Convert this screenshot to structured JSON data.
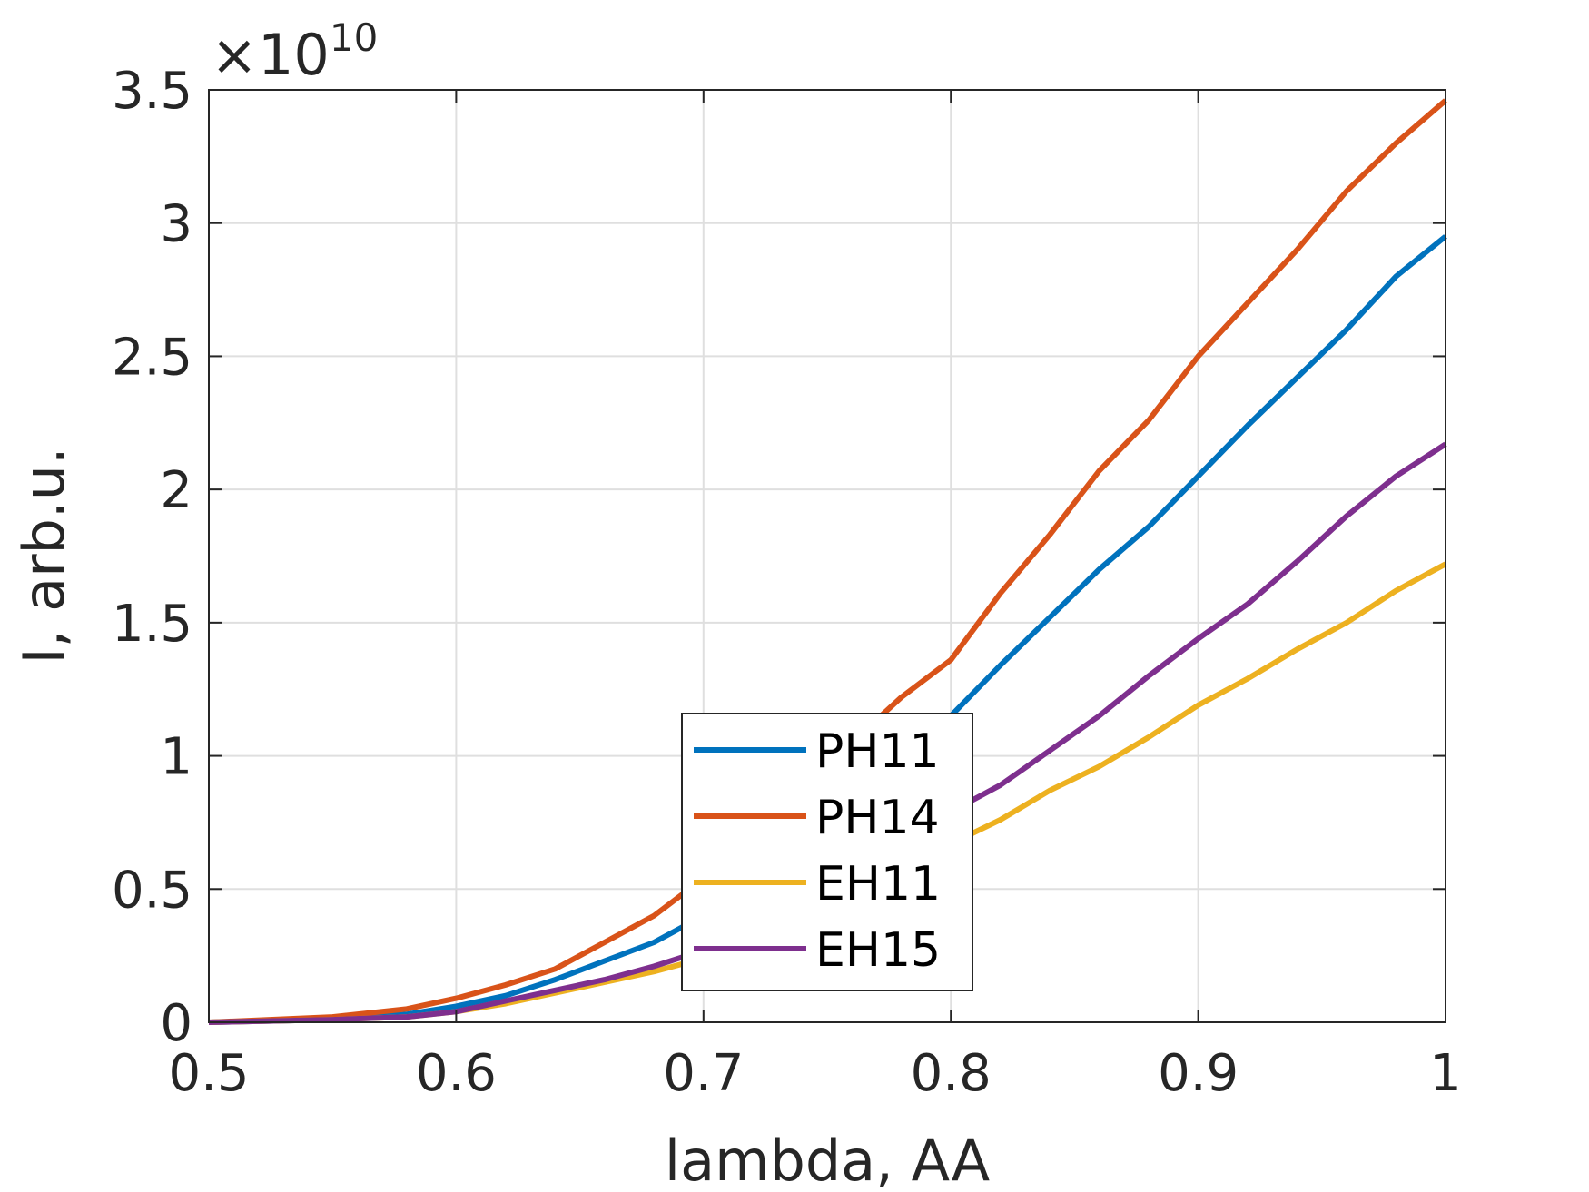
{
  "chart_data": {
    "type": "line",
    "title": "",
    "xlabel": "lambda, AA",
    "ylabel": "I, arb.u.",
    "y_exponent_label": "×10",
    "y_exponent_power": "10",
    "xlim": [
      0.5,
      1.0
    ],
    "ylim": [
      0,
      3.5
    ],
    "y_scale_factor": 10000000000.0,
    "grid": true,
    "legend_placement": "bottom-center",
    "x_ticks": [
      0.5,
      0.6,
      0.7,
      0.8,
      0.9,
      1.0
    ],
    "x_tick_labels": [
      "0.5",
      "0.6",
      "0.7",
      "0.8",
      "0.9",
      "1"
    ],
    "y_ticks": [
      0,
      0.5,
      1,
      1.5,
      2,
      2.5,
      3,
      3.5
    ],
    "y_tick_labels": [
      "0",
      "0.5",
      "1",
      "1.5",
      "2",
      "2.5",
      "3",
      "3.5"
    ],
    "x": [
      0.5,
      0.55,
      0.58,
      0.6,
      0.62,
      0.64,
      0.66,
      0.68,
      0.7,
      0.72,
      0.74,
      0.76,
      0.78,
      0.8,
      0.82,
      0.84,
      0.86,
      0.88,
      0.9,
      0.92,
      0.94,
      0.96,
      0.98,
      1.0
    ],
    "series": [
      {
        "name": "PH11",
        "color": "#0072BD",
        "values": [
          0.0,
          0.01,
          0.03,
          0.06,
          0.1,
          0.16,
          0.23,
          0.3,
          0.4,
          0.52,
          0.66,
          0.83,
          1.0,
          1.15,
          1.34,
          1.52,
          1.7,
          1.86,
          2.05,
          2.24,
          2.42,
          2.6,
          2.8,
          2.95
        ]
      },
      {
        "name": "PH14",
        "color": "#D95319",
        "values": [
          0.0,
          0.02,
          0.05,
          0.09,
          0.14,
          0.2,
          0.3,
          0.4,
          0.54,
          0.69,
          0.86,
          1.05,
          1.22,
          1.36,
          1.61,
          1.83,
          2.07,
          2.26,
          2.5,
          2.7,
          2.9,
          3.12,
          3.3,
          3.46
        ]
      },
      {
        "name": "EH11",
        "color": "#EDB120",
        "values": [
          0.0,
          0.01,
          0.02,
          0.04,
          0.07,
          0.11,
          0.15,
          0.19,
          0.24,
          0.31,
          0.39,
          0.49,
          0.59,
          0.67,
          0.76,
          0.87,
          0.96,
          1.07,
          1.19,
          1.29,
          1.4,
          1.5,
          1.62,
          1.72
        ]
      },
      {
        "name": "EH15",
        "color": "#7E2F8E",
        "values": [
          0.0,
          0.01,
          0.02,
          0.04,
          0.08,
          0.12,
          0.16,
          0.21,
          0.27,
          0.35,
          0.45,
          0.56,
          0.68,
          0.79,
          0.89,
          1.02,
          1.15,
          1.3,
          1.44,
          1.57,
          1.73,
          1.9,
          2.05,
          2.17
        ]
      }
    ]
  }
}
